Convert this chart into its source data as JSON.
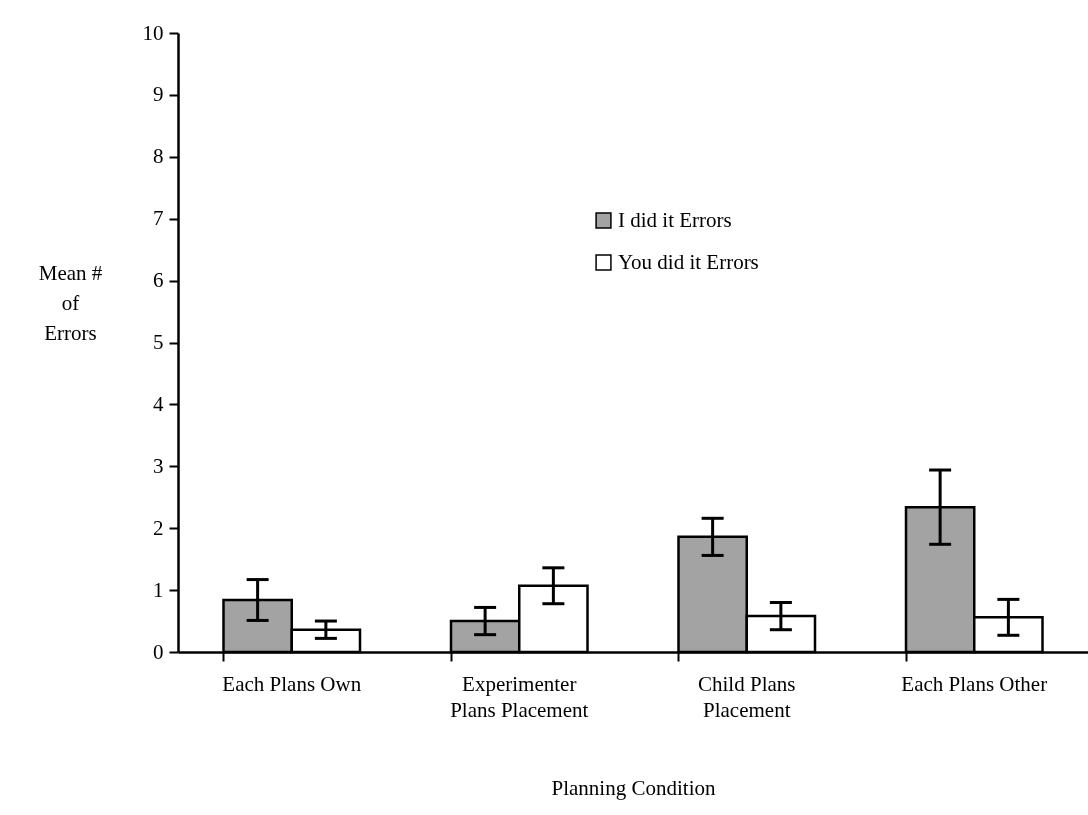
{
  "chart_data": {
    "type": "bar",
    "xlabel": "Planning Condition",
    "ylabel": "Mean # of Errors",
    "categories": [
      "Each Plans Own",
      "Experimenter Plans Placement",
      "Child Plans Placement",
      "Each Plans Other"
    ],
    "series": [
      {
        "name": "I did it Errors",
        "color": "#a3a3a3",
        "values": [
          0.84,
          0.5,
          1.86,
          2.34
        ],
        "errors": [
          0.33,
          0.22,
          0.3,
          0.6
        ]
      },
      {
        "name": "You did it Errors",
        "color": "#ffffff",
        "values": [
          0.36,
          1.07,
          0.58,
          0.56
        ],
        "errors": [
          0.14,
          0.29,
          0.22,
          0.29
        ]
      }
    ],
    "ylim": [
      0,
      10
    ],
    "yticks": [
      0,
      1,
      2,
      3,
      4,
      5,
      6,
      7,
      8,
      9,
      10
    ],
    "grid": false,
    "legend": "top"
  }
}
